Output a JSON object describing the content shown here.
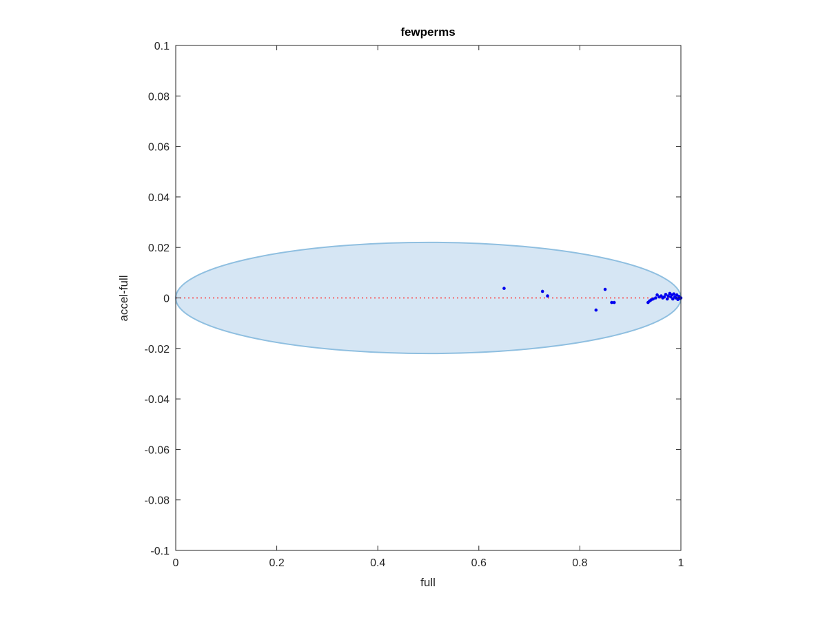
{
  "chart_data": {
    "type": "scatter",
    "title": "fewperms",
    "xlabel": "full",
    "ylabel": "accel-full",
    "xlim": [
      0,
      1
    ],
    "ylim": [
      -0.1,
      0.1
    ],
    "xticks": [
      0,
      0.2,
      0.4,
      0.6,
      0.8,
      1
    ],
    "xtick_labels": [
      "0",
      "0.2",
      "0.4",
      "0.6",
      "0.8",
      "1"
    ],
    "yticks": [
      0.1,
      0.08,
      0.06,
      0.04,
      0.02,
      0,
      -0.02,
      -0.04,
      -0.06,
      -0.08,
      -0.1
    ],
    "ytick_labels": [
      "0.1",
      "0.08",
      "0.06",
      "0.04",
      "0.02",
      "0",
      "-0.02",
      "-0.04",
      "-0.06",
      "-0.08",
      "-0.1"
    ],
    "grid": false,
    "reference_line": {
      "y": 0,
      "style": "dotted",
      "color": "#ff3333"
    },
    "ellipse": {
      "center": [
        0.5,
        0
      ],
      "x_radius": 0.5,
      "y_radius": 0.022,
      "fill": "#d6e6f4",
      "stroke": "#8fbfe0"
    },
    "points": [
      {
        "x": 0.65,
        "y": 0.0038
      },
      {
        "x": 0.726,
        "y": 0.0026
      },
      {
        "x": 0.736,
        "y": 0.0008
      },
      {
        "x": 0.832,
        "y": -0.0048
      },
      {
        "x": 0.85,
        "y": 0.0034
      },
      {
        "x": 0.863,
        "y": -0.0018
      },
      {
        "x": 0.868,
        "y": -0.0018
      },
      {
        "x": 0.935,
        "y": -0.0018
      },
      {
        "x": 0.938,
        "y": -0.0012
      },
      {
        "x": 0.941,
        "y": -0.0008
      },
      {
        "x": 0.945,
        "y": -0.0004
      },
      {
        "x": 0.95,
        "y": 0.0
      },
      {
        "x": 0.953,
        "y": 0.0012
      },
      {
        "x": 0.957,
        "y": 0.0004
      },
      {
        "x": 0.961,
        "y": 0.0008
      },
      {
        "x": 0.964,
        "y": 0.0
      },
      {
        "x": 0.967,
        "y": 0.0004
      },
      {
        "x": 0.97,
        "y": 0.0014
      },
      {
        "x": 0.973,
        "y": -0.0004
      },
      {
        "x": 0.975,
        "y": 0.0008
      },
      {
        "x": 0.978,
        "y": 0.0018
      },
      {
        "x": 0.98,
        "y": 0.0004
      },
      {
        "x": 0.982,
        "y": 0.0012
      },
      {
        "x": 0.984,
        "y": -0.0004
      },
      {
        "x": 0.986,
        "y": 0.0016
      },
      {
        "x": 0.988,
        "y": 0.0004
      },
      {
        "x": 0.99,
        "y": 0.0
      },
      {
        "x": 0.992,
        "y": 0.0012
      },
      {
        "x": 0.994,
        "y": -0.0006
      },
      {
        "x": 0.996,
        "y": 0.0006
      },
      {
        "x": 0.998,
        "y": -0.0002
      },
      {
        "x": 1.0,
        "y": 0.0
      }
    ],
    "point_color": "#0000ee"
  }
}
